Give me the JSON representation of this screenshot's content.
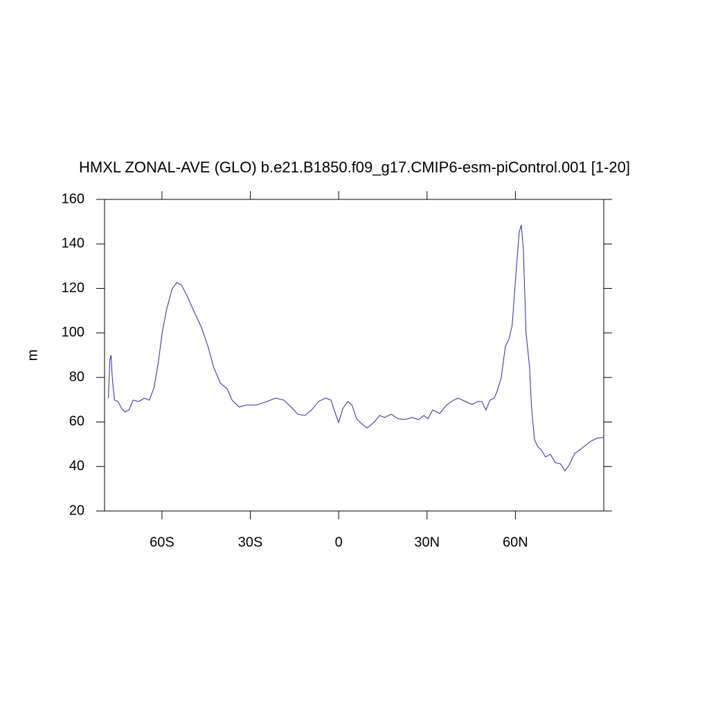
{
  "chart_data": {
    "type": "line",
    "title": "HMXL ZONAL-AVE (GLO) b.e21.B1850.f09_g17.CMIP6-esm-piControl.001 [1-20]",
    "y_label": "m",
    "xlim": [
      -79.5,
      90
    ],
    "ylim": [
      20,
      160
    ],
    "xticks": [
      {
        "value": -60,
        "label": "60S"
      },
      {
        "value": -30,
        "label": "30S"
      },
      0,
      {
        "value": 30,
        "label": "30N"
      },
      {
        "value": 60,
        "label": "60N"
      }
    ],
    "yticks": [
      20,
      40,
      60,
      80,
      100,
      120,
      140,
      160
    ],
    "grid": false,
    "series": [
      {
        "color": "#2020ff",
        "x": [
          -78.2,
          -77.7,
          -77.3,
          -76.8,
          -76.1,
          -74.9,
          -73.7,
          -72.6,
          -71.2,
          -69.8,
          -67.9,
          -66,
          -64.3,
          -62.7,
          -61.3,
          -59.9,
          -58.5,
          -56.6,
          -55,
          -53.3,
          -51.4,
          -49.1,
          -46.7,
          -44.4,
          -42.5,
          -40.2,
          -37.8,
          -36.2,
          -33.8,
          -31.5,
          -27.9,
          -24.4,
          -21.4,
          -18.6,
          -16.2,
          -13.9,
          -11.5,
          -9.2,
          -6.8,
          -4.5,
          -2.6,
          -0.9,
          0,
          1.4,
          3.1,
          4.5,
          6.1,
          7.8,
          9.6,
          12,
          13.9,
          15.7,
          17.8,
          20.2,
          22.5,
          24.9,
          27.2,
          28.9,
          30.3,
          31.9,
          34.3,
          36.6,
          39,
          40.6,
          43,
          45.3,
          47.2,
          48.6,
          50,
          51.4,
          52.8,
          53.8,
          55.2,
          56.6,
          57.8,
          58.9,
          60.1,
          61.3,
          62,
          62.7,
          63.6,
          64.8,
          65.5,
          66.5,
          67.6,
          68.8,
          70.2,
          71.9,
          73.5,
          75.4,
          76.8,
          78.2,
          80.1,
          82.4,
          85.3,
          87.6,
          90
        ],
        "values": [
          70.7,
          87.8,
          90,
          78.5,
          69.8,
          69.2,
          66,
          64.5,
          65.4,
          69.8,
          69.2,
          70.7,
          69.8,
          75.4,
          86.3,
          100.3,
          110.2,
          119.6,
          122.7,
          121.4,
          116.4,
          109.6,
          102.8,
          94,
          84.7,
          77.5,
          74.7,
          69.8,
          66.7,
          67.6,
          67.6,
          69.2,
          70.7,
          69.8,
          66.7,
          63.5,
          62.9,
          65.4,
          69.2,
          70.7,
          69.8,
          62.9,
          59.8,
          66,
          69.2,
          67.6,
          61.4,
          59.2,
          57.3,
          59.8,
          62.9,
          62,
          63.5,
          61.4,
          61.1,
          62,
          61.1,
          62.9,
          61.4,
          65.4,
          63.8,
          67.6,
          69.8,
          70.7,
          69.2,
          67.9,
          69.2,
          69.2,
          65.4,
          69.8,
          70.7,
          73.8,
          80,
          94,
          97.2,
          103.4,
          125.2,
          145.4,
          148.5,
          137.6,
          100.3,
          84.7,
          66,
          52,
          48.9,
          47.4,
          44.3,
          45.5,
          41.8,
          41.1,
          38,
          40.5,
          45.8,
          48,
          51.1,
          52.7,
          53
        ]
      }
    ]
  }
}
